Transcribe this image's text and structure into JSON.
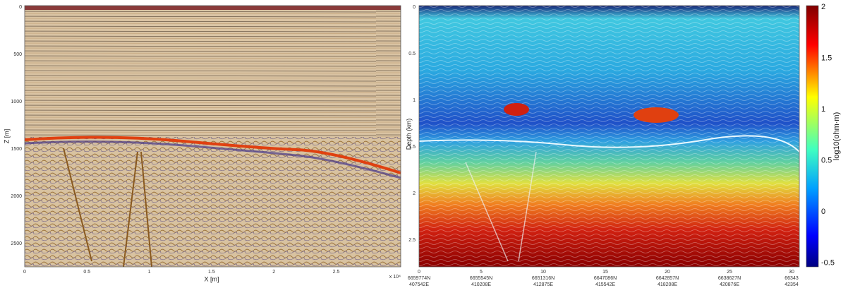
{
  "left_panel": {
    "y_label": "Z [m]",
    "y_ticks": [
      0,
      500,
      1000,
      1500,
      2000,
      2500
    ],
    "x_label": "X [m]",
    "x_ticks": [
      0,
      0.5,
      1,
      1.5,
      2,
      2.5
    ],
    "x_exponent": "x 10⁴"
  },
  "right_panel": {
    "y_label": "Depth (km)",
    "y_ticks": [
      0,
      0.5,
      1,
      1.5,
      2,
      2.5
    ],
    "x_ticks": [
      0,
      5,
      10,
      15,
      20,
      25,
      30
    ],
    "x_coords": [
      [
        "6659774N",
        "407542E"
      ],
      [
        "6655545N",
        "410208E"
      ],
      [
        "6651316N",
        "412875E"
      ],
      [
        "6647086N",
        "415542E"
      ],
      [
        "6642857N",
        "418208E"
      ],
      [
        "6638627N",
        "420876E"
      ],
      [
        "66343",
        "42354"
      ]
    ]
  },
  "colorbar": {
    "label": "log10(ohm·m)",
    "ticks": [
      2,
      1.5,
      1,
      0.5,
      0,
      -0.5
    ]
  }
}
